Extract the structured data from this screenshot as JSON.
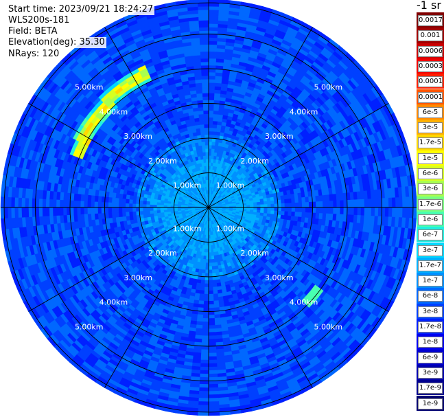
{
  "header": {
    "start_time": "Start time: 2023/09/21 18:24:27",
    "instrument": "WLS200s-181",
    "field": "Field: BETA",
    "elevation": "Elevation(deg): 35.30",
    "nrays": "NRays: 120"
  },
  "colorbar": {
    "unit": "-1 sr",
    "labels": [
      "0.0017",
      "0.001",
      "0.0006",
      "0.0003",
      "0.00017",
      "0.0001",
      "6e-5",
      "3e-5",
      "1.7e-5",
      "1e-5",
      "6e-6",
      "3e-6",
      "1.7e-6",
      "1e-6",
      "6e-7",
      "3e-7",
      "1.7e-7",
      "1e-7",
      "6e-8",
      "3e-8",
      "1.7e-8",
      "1e-8",
      "6e-9",
      "3e-9",
      "1.7e-9",
      "1e-9"
    ],
    "colors": [
      "#7f0000",
      "#a00000",
      "#c80000",
      "#f00000",
      "#ff2000",
      "#ff5500",
      "#ff8a00",
      "#ffb000",
      "#ffd800",
      "#ffff00",
      "#d8ff20",
      "#a8ff50",
      "#78ff80",
      "#48ffb0",
      "#20f0e0",
      "#00d8ff",
      "#00b0ff",
      "#0090ff",
      "#0068ff",
      "#0040ff",
      "#0020ff",
      "#0000f0",
      "#0000d0",
      "#0000b0",
      "#000090",
      "#000070"
    ]
  },
  "chart_data": {
    "type": "heatmap",
    "projection": "polar",
    "field": "BETA",
    "range_rings_km": [
      1,
      2,
      3,
      4,
      5
    ],
    "ring_labels": [
      "1.00km",
      "2.00km",
      "3.00km",
      "4.00km",
      "5.00km"
    ],
    "spokes_deg": [
      0,
      30,
      60,
      90,
      120,
      150,
      180,
      210,
      240,
      270,
      300,
      330
    ],
    "max_range_km": 6.0,
    "nrays": 120,
    "color_scale": "log",
    "value_range": [
      1e-09,
      0.0017
    ],
    "background_values": {
      "center_region_0_2km": "6e-8 to 1.7e-7",
      "outer_region_2_6km": "1.7e-8 to 6e-8"
    },
    "features": [
      {
        "description": "high backscatter arc",
        "range_km": [
          4.0,
          4.4
        ],
        "azimuth_deg": [
          290,
          335
        ],
        "value_range": [
          3e-06,
          1.7e-05
        ]
      },
      {
        "description": "small high patch",
        "range_km": 4.0,
        "azimuth_deg": 130,
        "value": 1e-06
      }
    ]
  }
}
